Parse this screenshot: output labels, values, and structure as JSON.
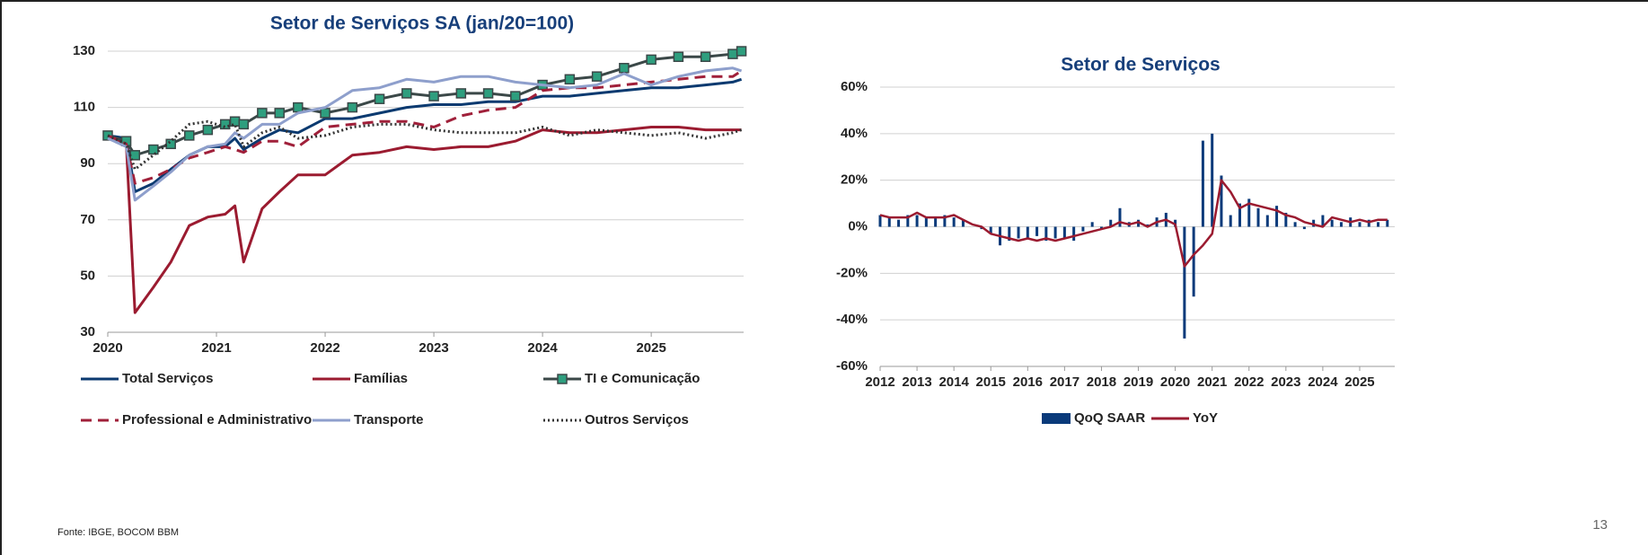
{
  "chart_data": [
    {
      "type": "line",
      "title": "Setor de Serviços SA (jan/20=100)",
      "x": [
        2020.0,
        2020.17,
        2020.25,
        2020.42,
        2020.58,
        2020.75,
        2020.92,
        2021.08,
        2021.17,
        2021.25,
        2021.42,
        2021.58,
        2021.75,
        2022.0,
        2022.25,
        2022.5,
        2022.75,
        2023.0,
        2023.25,
        2023.5,
        2023.75,
        2024.0,
        2024.25,
        2024.5,
        2024.75,
        2025.0,
        2025.25,
        2025.5,
        2025.75,
        2025.83
      ],
      "xlim": [
        2020,
        2025.85
      ],
      "xticks": [
        2020,
        2021,
        2022,
        2023,
        2024,
        2025
      ],
      "ylim": [
        30,
        130
      ],
      "yticks": [
        30,
        50,
        70,
        90,
        110,
        130
      ],
      "grid": true,
      "series": [
        {
          "name": "Total Serviços",
          "color": "#0b3a70",
          "dash": "solid",
          "values": [
            100,
            99,
            80,
            83,
            88,
            93,
            96,
            96,
            99,
            95,
            99,
            102,
            101,
            106,
            106,
            108,
            110,
            111,
            111,
            112,
            112,
            114,
            114,
            115,
            116,
            117,
            117,
            118,
            119,
            120
          ]
        },
        {
          "name": "Famílias",
          "color": "#9b1b30",
          "dash": "solid",
          "values": [
            100,
            97,
            37,
            46,
            55,
            68,
            71,
            72,
            75,
            55,
            74,
            80,
            86,
            86,
            93,
            94,
            96,
            95,
            96,
            96,
            98,
            102,
            101,
            101,
            102,
            103,
            103,
            102,
            102,
            102
          ]
        },
        {
          "name": "TI e Comunicação",
          "color": "#3b4848",
          "marker_color": "#2e9e7e",
          "markers": "square",
          "dash": "solid",
          "values": [
            100,
            98,
            93,
            95,
            97,
            100,
            102,
            104,
            105,
            104,
            108,
            108,
            110,
            108,
            110,
            113,
            115,
            114,
            115,
            115,
            114,
            118,
            120,
            121,
            124,
            127,
            128,
            128,
            129,
            130
          ]
        },
        {
          "name": "Professional e Administrativo",
          "color": "#a0203a",
          "dash": "dashed",
          "values": [
            100,
            97,
            83,
            85,
            88,
            92,
            94,
            96,
            95,
            94,
            98,
            98,
            96,
            103,
            104,
            105,
            105,
            103,
            107,
            109,
            110,
            116,
            117,
            117,
            118,
            119,
            120,
            121,
            121,
            123
          ]
        },
        {
          "name": "Transporte",
          "color": "#8e9fcc",
          "dash": "solid",
          "values": [
            99,
            96,
            77,
            82,
            87,
            93,
            96,
            97,
            101,
            99,
            104,
            104,
            108,
            110,
            116,
            117,
            120,
            119,
            121,
            121,
            119,
            118,
            117,
            118,
            122,
            118,
            121,
            123,
            124,
            123
          ]
        },
        {
          "name": "Outros Serviços",
          "color": "#333333",
          "dash": "dotted",
          "values": [
            100,
            97,
            88,
            93,
            98,
            104,
            105,
            103,
            104,
            96,
            101,
            103,
            99,
            100,
            103,
            104,
            104,
            102,
            101,
            101,
            101,
            103,
            100,
            102,
            101,
            100,
            101,
            99,
            101,
            102
          ]
        }
      ]
    },
    {
      "type": "combo",
      "title": "Setor de Serviços",
      "x": [
        2012.0,
        2012.25,
        2012.5,
        2012.75,
        2013.0,
        2013.25,
        2013.5,
        2013.75,
        2014.0,
        2014.25,
        2014.5,
        2014.75,
        2015.0,
        2015.25,
        2015.5,
        2015.75,
        2016.0,
        2016.25,
        2016.5,
        2016.75,
        2017.0,
        2017.25,
        2017.5,
        2017.75,
        2018.0,
        2018.25,
        2018.5,
        2018.75,
        2019.0,
        2019.25,
        2019.5,
        2019.75,
        2020.0,
        2020.25,
        2020.5,
        2020.75,
        2021.0,
        2021.25,
        2021.5,
        2021.75,
        2022.0,
        2022.25,
        2022.5,
        2022.75,
        2023.0,
        2023.25,
        2023.5,
        2023.75,
        2024.0,
        2024.25,
        2024.5,
        2024.75,
        2025.0,
        2025.25,
        2025.5,
        2025.75
      ],
      "xlim": [
        2012,
        2025.95
      ],
      "xticks": [
        2012,
        2013,
        2014,
        2015,
        2016,
        2017,
        2018,
        2019,
        2020,
        2021,
        2022,
        2023,
        2024,
        2025
      ],
      "ylim": [
        -60,
        60
      ],
      "yticks": [
        {
          "value": -60,
          "label": "-60%"
        },
        {
          "value": -40,
          "label": "-40%"
        },
        {
          "value": -20,
          "label": "-20%"
        },
        {
          "value": 0,
          "label": "0%"
        },
        {
          "value": 20,
          "label": "20%"
        },
        {
          "value": 40,
          "label": "40%"
        },
        {
          "value": 60,
          "label": "60%"
        }
      ],
      "grid": true,
      "series": [
        {
          "name": "QoQ SAAR",
          "type": "bar",
          "color": "#0a3a7a",
          "values": [
            5,
            4,
            3,
            5,
            5,
            4,
            4,
            5,
            4,
            3,
            0,
            -1,
            -3,
            -8,
            -6,
            -5,
            -5,
            -4,
            -6,
            -5,
            -5,
            -6,
            -2,
            2,
            -1,
            3,
            8,
            2,
            3,
            1,
            4,
            6,
            3,
            -48,
            -30,
            37,
            40,
            22,
            5,
            10,
            12,
            8,
            5,
            9,
            6,
            2,
            -1,
            3,
            5,
            3,
            2,
            4,
            2,
            3,
            2,
            3
          ]
        },
        {
          "name": "YoY",
          "type": "line",
          "color": "#9b1b30",
          "values": [
            5,
            4,
            4,
            4,
            6,
            4,
            4,
            4,
            5,
            3,
            1,
            0,
            -3,
            -4,
            -5,
            -6,
            -5,
            -6,
            -5,
            -6,
            -5,
            -4,
            -3,
            -2,
            -1,
            0,
            2,
            1,
            2,
            0,
            2,
            3,
            1,
            -17,
            -12,
            -8,
            -3,
            20,
            15,
            8,
            10,
            9,
            8,
            7,
            5,
            4,
            2,
            1,
            0,
            4,
            3,
            2,
            3,
            2,
            3,
            3
          ]
        }
      ]
    }
  ],
  "source": "Fonte: IBGE, BOCOM BBM",
  "page_number": "13"
}
